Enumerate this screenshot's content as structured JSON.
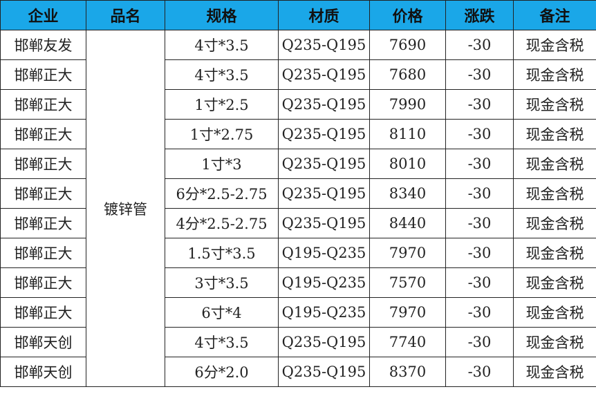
{
  "header_bg": "#1aa7e8",
  "headers": [
    "企业",
    "品名",
    "规格",
    "材质",
    "价格",
    "涨跌",
    "备注"
  ],
  "product": "镀锌管",
  "rows": [
    {
      "company": "邯郸友发",
      "spec": "4寸*3.5",
      "material": "Q235-Q195",
      "price": "7690",
      "change": "-30",
      "note": "现金含税"
    },
    {
      "company": "邯郸正大",
      "spec": "4寸*3.5",
      "material": "Q235-Q195",
      "price": "7680",
      "change": "-30",
      "note": "现金含税"
    },
    {
      "company": "邯郸正大",
      "spec": "1寸*2.5",
      "material": "Q235-Q195",
      "price": "7990",
      "change": "-30",
      "note": "现金含税"
    },
    {
      "company": "邯郸正大",
      "spec": "1寸*2.75",
      "material": "Q235-Q195",
      "price": "8110",
      "change": "-30",
      "note": "现金含税"
    },
    {
      "company": "邯郸正大",
      "spec": "1寸*3",
      "material": "Q235-Q195",
      "price": "8010",
      "change": "-30",
      "note": "现金含税"
    },
    {
      "company": "邯郸正大",
      "spec": "6分*2.5-2.75",
      "material": "Q235-Q195",
      "price": "8340",
      "change": "-30",
      "note": "现金含税"
    },
    {
      "company": "邯郸正大",
      "spec": "4分*2.5-2.75",
      "material": "Q235-Q195",
      "price": "8440",
      "change": "-30",
      "note": "现金含税"
    },
    {
      "company": "邯郸正大",
      "spec": "1.5寸*3.5",
      "material": "Q195-Q235",
      "price": "7970",
      "change": "-30",
      "note": "现金含税"
    },
    {
      "company": "邯郸正大",
      "spec": "3寸*3.5",
      "material": "Q195-Q235",
      "price": "7570",
      "change": "-30",
      "note": "现金含税"
    },
    {
      "company": "邯郸正大",
      "spec": "6寸*4",
      "material": "Q195-Q235",
      "price": "7970",
      "change": "-30",
      "note": "现金含税"
    },
    {
      "company": "邯郸天创",
      "spec": "4寸*3.5",
      "material": "Q235-Q195",
      "price": "7740",
      "change": "-30",
      "note": "现金含税"
    },
    {
      "company": "邯郸天创",
      "spec": "6分*2.0",
      "material": "Q235-Q195",
      "price": "8370",
      "change": "-30",
      "note": "现金含税"
    }
  ]
}
